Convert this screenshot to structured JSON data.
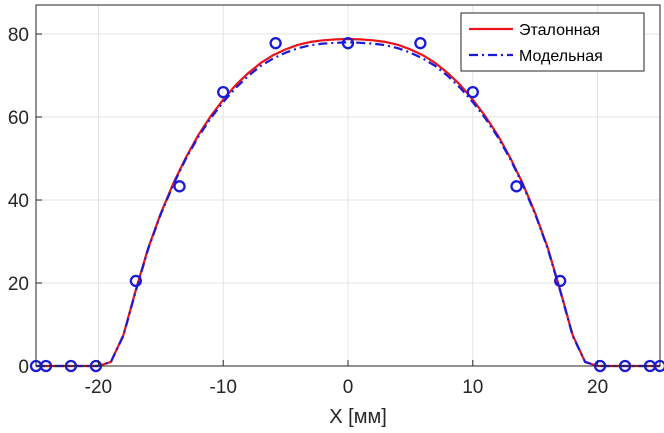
{
  "chart_data": {
    "type": "line",
    "title": "",
    "xlabel": "X [мм]",
    "ylabel": "",
    "xlim": [
      -25,
      25
    ],
    "ylim": [
      0,
      87
    ],
    "grid": true,
    "legend_position": "top-right",
    "x_ticks": [
      -20,
      -10,
      0,
      10,
      20
    ],
    "x_tick_labels": [
      "-20",
      "-10",
      "0",
      "10",
      "20"
    ],
    "y_ticks": [
      0,
      20,
      40,
      60,
      80
    ],
    "y_tick_labels": [
      "0",
      "20",
      "40",
      "60",
      "80"
    ],
    "series": [
      {
        "name": "Эталонная",
        "style": "solid",
        "color": "#e8141a",
        "x": [
          -25,
          -22,
          -20,
          -19,
          -18,
          -17,
          -16,
          -15,
          -14,
          -13,
          -12,
          -11,
          -10,
          -9,
          -8,
          -7,
          -6,
          -5,
          -4,
          -3,
          -2,
          -1,
          0,
          1,
          2,
          3,
          4,
          5,
          6,
          7,
          8,
          9,
          10,
          11,
          12,
          13,
          14,
          15,
          16,
          17,
          18,
          19,
          20,
          22,
          25
        ],
        "y": [
          0,
          0,
          0,
          1.0,
          7.5,
          18.3,
          28.5,
          36.8,
          44.0,
          50.2,
          55.6,
          60.2,
          64.2,
          67.7,
          70.6,
          73.0,
          74.9,
          76.3,
          77.4,
          78.1,
          78.5,
          78.7,
          78.8,
          78.7,
          78.5,
          78.1,
          77.4,
          76.3,
          74.9,
          73.0,
          70.6,
          67.7,
          64.2,
          60.2,
          55.6,
          50.2,
          44.0,
          36.8,
          28.5,
          18.3,
          7.5,
          1.0,
          0,
          0,
          0
        ]
      },
      {
        "name": "Модельная",
        "style": "dashdot",
        "color": "#1a1ad9",
        "x": [
          -25,
          -22,
          -20,
          -19,
          -18,
          -17,
          -16,
          -15,
          -14,
          -13,
          -12,
          -11,
          -10,
          -9,
          -8,
          -7,
          -6,
          -5,
          -4,
          -3,
          -2,
          -1,
          0,
          1,
          2,
          3,
          4,
          5,
          6,
          7,
          8,
          9,
          10,
          11,
          12,
          13,
          14,
          15,
          16,
          17,
          18,
          19,
          20,
          22,
          25
        ],
        "y": [
          0,
          0,
          0,
          1.0,
          7.3,
          18.1,
          28.3,
          36.6,
          43.7,
          49.9,
          55.2,
          59.7,
          63.6,
          67.0,
          69.9,
          72.3,
          74.1,
          75.5,
          76.6,
          77.3,
          77.7,
          77.9,
          78.0,
          77.9,
          77.7,
          77.3,
          76.6,
          75.5,
          74.1,
          72.3,
          69.9,
          67.0,
          63.6,
          59.7,
          55.2,
          49.9,
          43.7,
          36.6,
          28.3,
          18.1,
          7.3,
          1.0,
          0,
          0,
          0
        ]
      },
      {
        "name": "",
        "style": "markers",
        "marker": "circle",
        "color": "#1a1ad9",
        "x": [
          -25,
          -24.2,
          -22.2,
          -20.2,
          -17,
          -13.5,
          -10,
          -5.8,
          0,
          5.8,
          10,
          13.5,
          17,
          20.2,
          22.2,
          24.2,
          25
        ],
        "y": [
          0,
          0,
          0,
          0,
          20.5,
          43.3,
          66,
          77.8,
          77.8,
          77.8,
          66,
          43.3,
          20.5,
          0,
          0,
          0,
          0
        ]
      }
    ]
  }
}
